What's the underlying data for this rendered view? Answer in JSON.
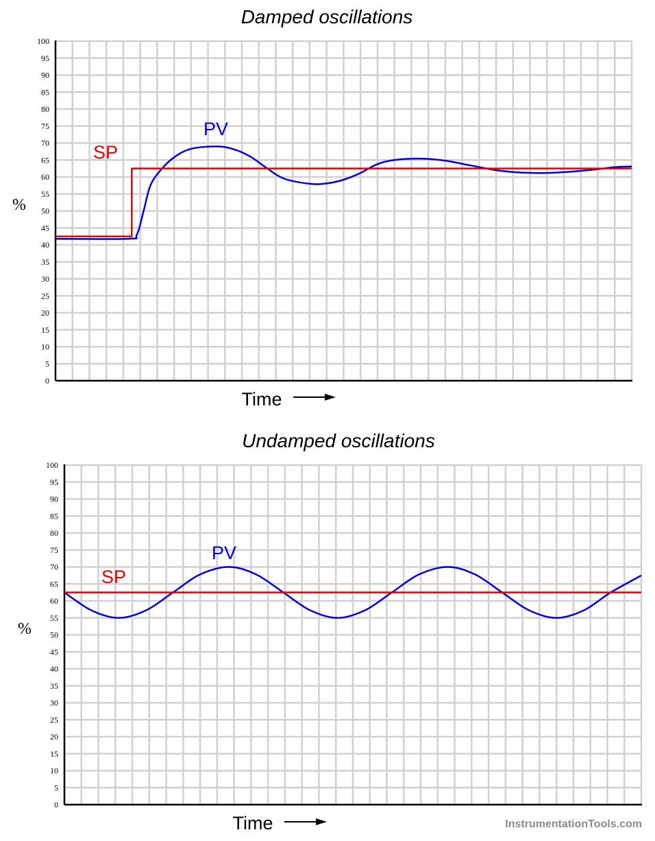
{
  "colors": {
    "sp": "#e60000",
    "pv": "#0000dd",
    "grid": "#d0d0d0",
    "axis": "#000000",
    "watermark": "#8a8a8a"
  },
  "watermark": "InstrumentationTools.com",
  "chart_data": [
    {
      "type": "line",
      "title": "Damped oscillations",
      "ylabel": "%",
      "xlabel": "Time",
      "ylim": [
        0,
        100
      ],
      "yticks": [
        0,
        5,
        10,
        15,
        20,
        25,
        30,
        35,
        40,
        45,
        50,
        55,
        60,
        65,
        70,
        75,
        80,
        85,
        90,
        95,
        100
      ],
      "grid": true,
      "series": [
        {
          "name": "SP",
          "color": "#e60000",
          "points": [
            [
              0,
              42.5
            ],
            [
              4.5,
              42.5
            ],
            [
              4.5,
              62.5
            ],
            [
              34,
              62.5
            ]
          ]
        },
        {
          "name": "PV",
          "color": "#0000dd",
          "points": [
            [
              0,
              41.8
            ],
            [
              4.3,
              41.8
            ],
            [
              4.8,
              43
            ],
            [
              5.2,
              50
            ],
            [
              5.6,
              57.5
            ],
            [
              6.2,
              62
            ],
            [
              7,
              65.8
            ],
            [
              8,
              68.3
            ],
            [
              9.5,
              69
            ],
            [
              10.5,
              68.2
            ],
            [
              11.5,
              66
            ],
            [
              12.5,
              62.5
            ],
            [
              13.5,
              59.5
            ],
            [
              15,
              58
            ],
            [
              16,
              58.1
            ],
            [
              17,
              59.2
            ],
            [
              18,
              61.2
            ],
            [
              19,
              63.8
            ],
            [
              20,
              65
            ],
            [
              21.5,
              65.4
            ],
            [
              23,
              64.8
            ],
            [
              24.5,
              63.4
            ],
            [
              26,
              62
            ],
            [
              27.5,
              61.3
            ],
            [
              29,
              61.2
            ],
            [
              30.5,
              61.6
            ],
            [
              32,
              62.3
            ],
            [
              33,
              62.9
            ],
            [
              34,
              63.1
            ]
          ]
        }
      ]
    },
    {
      "type": "line",
      "title": "Undamped oscillations",
      "ylabel": "%",
      "xlabel": "Time",
      "ylim": [
        0,
        100
      ],
      "yticks": [
        0,
        5,
        10,
        15,
        20,
        25,
        30,
        35,
        40,
        45,
        50,
        55,
        60,
        65,
        70,
        75,
        80,
        85,
        90,
        95,
        100
      ],
      "grid": true,
      "series": [
        {
          "name": "SP",
          "color": "#e60000",
          "points": [
            [
              0,
              62.5
            ],
            [
              34,
              62.5
            ]
          ]
        },
        {
          "name": "PV",
          "color": "#0000dd",
          "points": [
            [
              0,
              62.5
            ],
            [
              1.6,
              57.2
            ],
            [
              3.2,
              55
            ],
            [
              4.8,
              57.2
            ],
            [
              6.4,
              62.5
            ],
            [
              8,
              67.8
            ],
            [
              9.7,
              70
            ],
            [
              11.3,
              67.8
            ],
            [
              12.9,
              62.5
            ],
            [
              14.5,
              57.2
            ],
            [
              16.1,
              55
            ],
            [
              17.7,
              57.2
            ],
            [
              19.3,
              62.5
            ],
            [
              20.9,
              67.8
            ],
            [
              22.6,
              70
            ],
            [
              24.2,
              67.8
            ],
            [
              25.8,
              62.5
            ],
            [
              27.4,
              57.2
            ],
            [
              29,
              55
            ],
            [
              30.6,
              57.2
            ],
            [
              32.2,
              62.5
            ],
            [
              34,
              67.5
            ]
          ]
        }
      ]
    }
  ]
}
